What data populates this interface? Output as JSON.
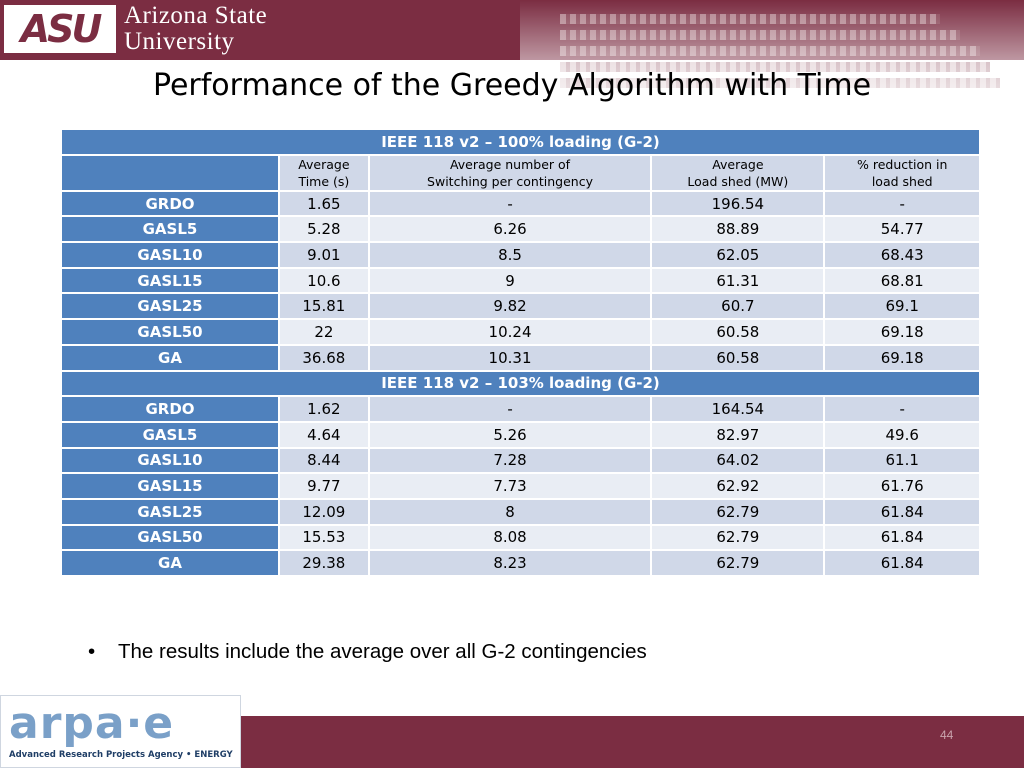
{
  "header": {
    "logo_mark": "ASU",
    "logo_line1": "Arizona State",
    "logo_line2": "University"
  },
  "title": "Performance of the Greedy Algorithm with Time",
  "table": {
    "col_headers": [
      [
        "Average",
        "Time (s)"
      ],
      [
        "Average number of",
        "Switching per contingency"
      ],
      [
        "Average",
        "Load shed (MW)"
      ],
      [
        "% reduction in",
        "load shed"
      ]
    ],
    "sections": [
      {
        "title": "IEEE 118 v2 – 100% loading (G-2)",
        "rows": [
          {
            "label": "GRDO",
            "values": [
              "1.65",
              "-",
              "196.54",
              "-"
            ]
          },
          {
            "label": "GASL5",
            "values": [
              "5.28",
              "6.26",
              "88.89",
              "54.77"
            ]
          },
          {
            "label": "GASL10",
            "values": [
              "9.01",
              "8.5",
              "62.05",
              "68.43"
            ]
          },
          {
            "label": "GASL15",
            "values": [
              "10.6",
              "9",
              "61.31",
              "68.81"
            ]
          },
          {
            "label": "GASL25",
            "values": [
              "15.81",
              "9.82",
              "60.7",
              "69.1"
            ]
          },
          {
            "label": "GASL50",
            "values": [
              "22",
              "10.24",
              "60.58",
              "69.18"
            ]
          },
          {
            "label": "GA",
            "values": [
              "36.68",
              "10.31",
              "60.58",
              "69.18"
            ]
          }
        ]
      },
      {
        "title": "IEEE 118 v2 – 103% loading (G-2)",
        "rows": [
          {
            "label": "GRDO",
            "values": [
              "1.62",
              "-",
              "164.54",
              "-"
            ]
          },
          {
            "label": "GASL5",
            "values": [
              "4.64",
              "5.26",
              "82.97",
              "49.6"
            ]
          },
          {
            "label": "GASL10",
            "values": [
              "8.44",
              "7.28",
              "64.02",
              "61.1"
            ]
          },
          {
            "label": "GASL15",
            "values": [
              "9.77",
              "7.73",
              "62.92",
              "61.76"
            ]
          },
          {
            "label": "GASL25",
            "values": [
              "12.09",
              "8",
              "62.79",
              "61.84"
            ]
          },
          {
            "label": "GASL50",
            "values": [
              "15.53",
              "8.08",
              "62.79",
              "61.84"
            ]
          },
          {
            "label": "GA",
            "values": [
              "29.38",
              "8.23",
              "62.79",
              "61.84"
            ]
          }
        ]
      }
    ]
  },
  "bullets": [
    "The results include the average over all G-2 contingencies"
  ],
  "footer": {
    "arpa_word": "arpa·e",
    "arpa_sub": "Advanced Research Projects Agency • ENERGY",
    "page_number": "44"
  },
  "colors": {
    "brand_maroon": "#7b2d42",
    "table_header_blue": "#4f81bd",
    "row_band_dark": "#d0d8e8",
    "row_band_light": "#e9edf4"
  }
}
